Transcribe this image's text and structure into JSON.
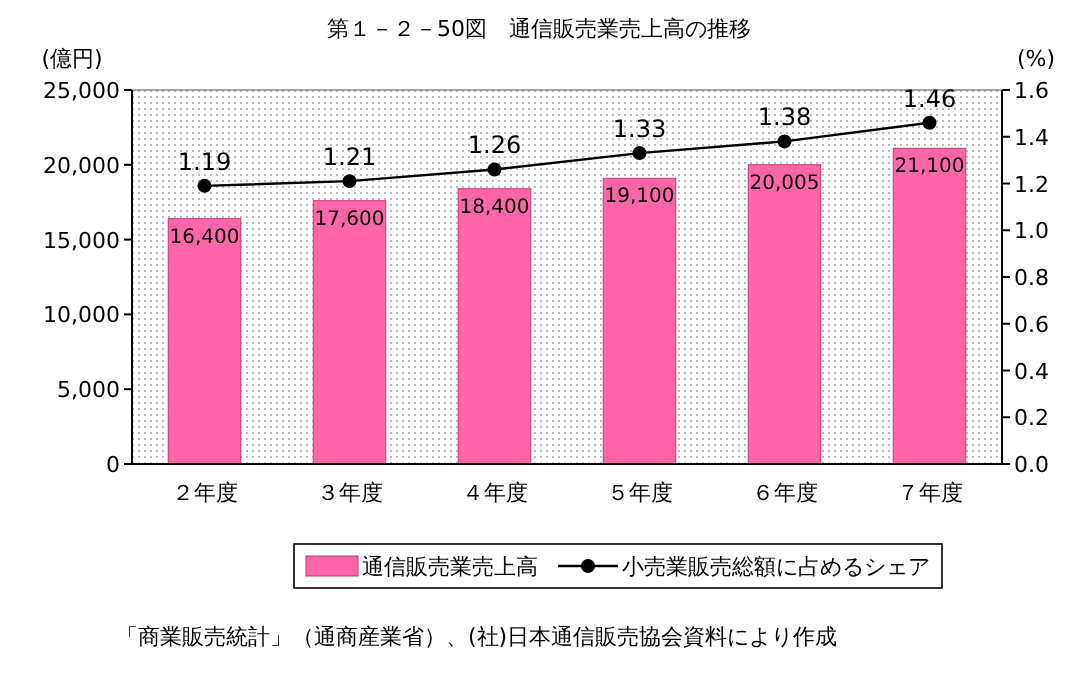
{
  "chart_data": {
    "type": "bar",
    "title": "第１－２－50図　通信販売業売上高の推移",
    "ylabel": "(億円)",
    "y2label": "(%)",
    "categories": [
      "２年度",
      "３年度",
      "４年度",
      "５年度",
      "６年度",
      "７年度"
    ],
    "series": [
      {
        "name": "通信販売業売上高",
        "color": "#ff66a8",
        "values": [
          16400,
          17600,
          18400,
          19100,
          20005,
          21100
        ],
        "value_labels": [
          "16,400",
          "17,600",
          "18,400",
          "19,100",
          "20,005",
          "21,100"
        ]
      },
      {
        "name": "小売業販売総額に占めるシェア",
        "type": "line",
        "axis": "y2",
        "color": "#000000",
        "marker": "circle",
        "line_style": "solid",
        "values": [
          1.19,
          1.21,
          1.26,
          1.33,
          1.38,
          1.46
        ],
        "value_labels": [
          "1.19",
          "1.21",
          "1.26",
          "1.33",
          "1.38",
          "1.46"
        ]
      }
    ],
    "ylim": [
      0,
      25000
    ],
    "yticks": [
      {
        "value": 0,
        "label": "0"
      },
      {
        "value": 5000,
        "label": "5,000"
      },
      {
        "value": 10000,
        "label": "10,000"
      },
      {
        "value": 15000,
        "label": "15,000"
      },
      {
        "value": 20000,
        "label": "20,000"
      },
      {
        "value": 25000,
        "label": "25,000"
      }
    ],
    "y2lim": [
      0,
      1.6
    ],
    "y2ticks": [
      {
        "value": 0,
        "label": "0.0"
      },
      {
        "value": 0.2,
        "label": "0.2"
      },
      {
        "value": 0.4,
        "label": "0.4"
      },
      {
        "value": 0.6,
        "label": "0.6"
      },
      {
        "value": 0.8,
        "label": "0.8"
      },
      {
        "value": 1,
        "label": "1.0"
      },
      {
        "value": 1.2,
        "label": "1.2"
      },
      {
        "value": 1.4,
        "label": "1.4"
      },
      {
        "value": 1.6,
        "label": "1.6"
      }
    ],
    "grid": false,
    "legend": "bottom",
    "annotations": [
      "「商業販売統計」（通商産業省）、(社)日本通信販売協会資料により作成"
    ]
  }
}
